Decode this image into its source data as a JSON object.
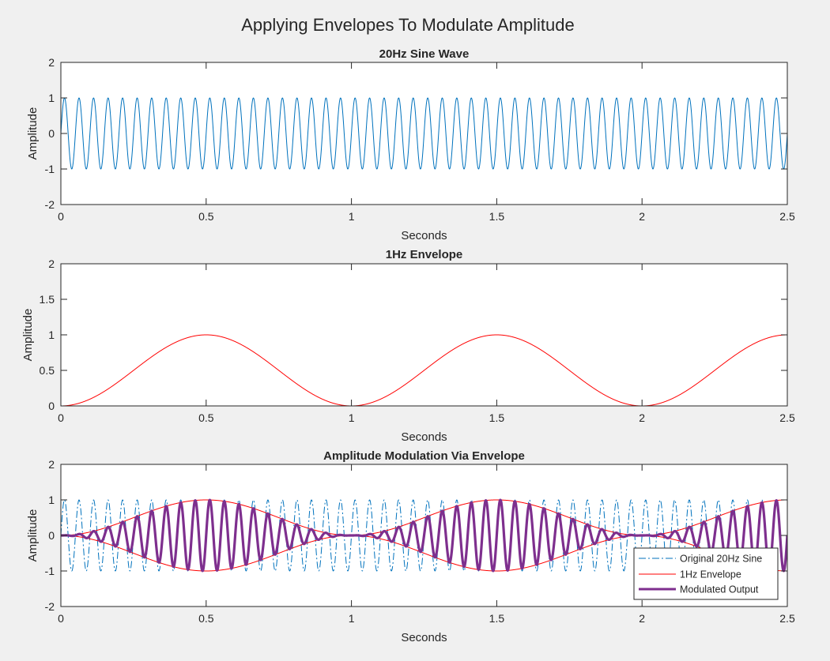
{
  "figure": {
    "suptitle": "Applying Envelopes To Modulate Amplitude",
    "background": "#f0f0f0"
  },
  "chart_data": [
    {
      "type": "line",
      "title": "20Hz Sine Wave",
      "xlabel": "Seconds",
      "ylabel": "Amplitude",
      "xlim": [
        0,
        2.5
      ],
      "ylim": [
        -2,
        2
      ],
      "xticks": [
        "0",
        "0.5",
        "1",
        "1.5",
        "2",
        "2.5"
      ],
      "yticks": [
        "-2",
        "-1",
        "0",
        "1",
        "2"
      ],
      "grid": false,
      "series": [
        {
          "formula": "sin(2*pi*20*t)",
          "frequency_hz": 20,
          "amplitude": 1,
          "x_range": [
            0,
            2.5
          ],
          "color": "#0072bd",
          "style": "solid"
        }
      ]
    },
    {
      "type": "line",
      "title": "1Hz Envelope",
      "xlabel": "Seconds",
      "ylabel": "Amplitude",
      "xlim": [
        0,
        2.5
      ],
      "ylim": [
        0,
        2
      ],
      "xticks": [
        "0",
        "0.5",
        "1",
        "1.5",
        "2",
        "2.5"
      ],
      "yticks": [
        "0",
        "0.5",
        "1",
        "1.5",
        "2"
      ],
      "grid": false,
      "series": [
        {
          "formula": "(1-cos(2*pi*t))/2",
          "frequency_hz": 1,
          "min": 0,
          "max": 1,
          "peaks_at": [
            0.5,
            1.5,
            2.5
          ],
          "troughs_at": [
            0,
            1,
            2
          ],
          "x_range": [
            0,
            2.5
          ],
          "color": "#ff0000",
          "style": "solid"
        }
      ]
    },
    {
      "type": "line",
      "title": "Amplitude Modulation Via Envelope",
      "xlabel": "Seconds",
      "ylabel": "Amplitude",
      "xlim": [
        0,
        2.5
      ],
      "ylim": [
        -2,
        2
      ],
      "xticks": [
        "0",
        "0.5",
        "1",
        "1.5",
        "2",
        "2.5"
      ],
      "yticks": [
        "-2",
        "-1",
        "0",
        "1",
        "2"
      ],
      "grid": false,
      "legend_position": "bottom-right",
      "series": [
        {
          "name": "Original 20Hz Sine",
          "formula": "sin(2*pi*20*t)",
          "x_range": [
            0,
            2.5
          ],
          "color": "#0072bd",
          "style": "dashdot"
        },
        {
          "name": "1Hz Envelope",
          "formula": "±(1-cos(2*pi*t))/2",
          "mirrored": true,
          "x_range": [
            0,
            2.5
          ],
          "color": "#ff0000",
          "style": "solid"
        },
        {
          "name": "Modulated Output",
          "formula": "sin(2*pi*20*t)*(1-cos(2*pi*t))/2",
          "x_range": [
            0,
            2.5
          ],
          "color": "#7e2f8e",
          "style": "solid-thick"
        }
      ]
    }
  ]
}
